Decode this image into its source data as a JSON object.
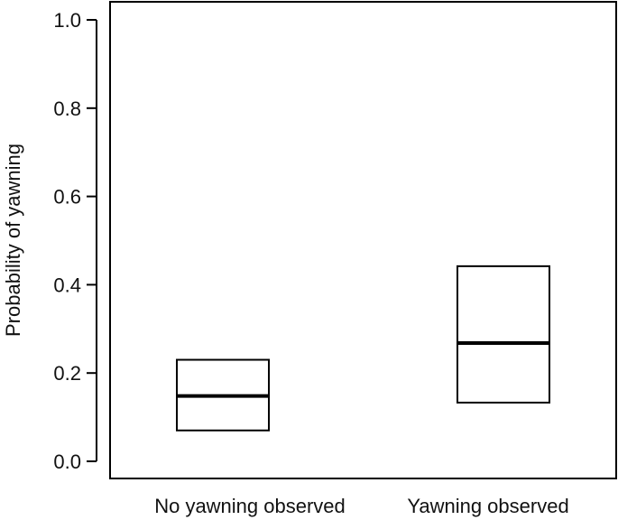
{
  "chart_data": {
    "type": "box",
    "ylabel": "Probability of yawning",
    "xlabel": "",
    "ylim": [
      0,
      1
    ],
    "yticks": [
      "0.0",
      "0.2",
      "0.4",
      "0.6",
      "0.8",
      "1.0"
    ],
    "categories": [
      "No yawning observed",
      "Yawning observed"
    ],
    "boxes": [
      {
        "category": "No yawning observed",
        "lower": 0.07,
        "median": 0.148,
        "upper": 0.23
      },
      {
        "category": "Yawning observed",
        "lower": 0.133,
        "median": 0.268,
        "upper": 0.442
      }
    ],
    "grid": false,
    "legend": "none"
  }
}
